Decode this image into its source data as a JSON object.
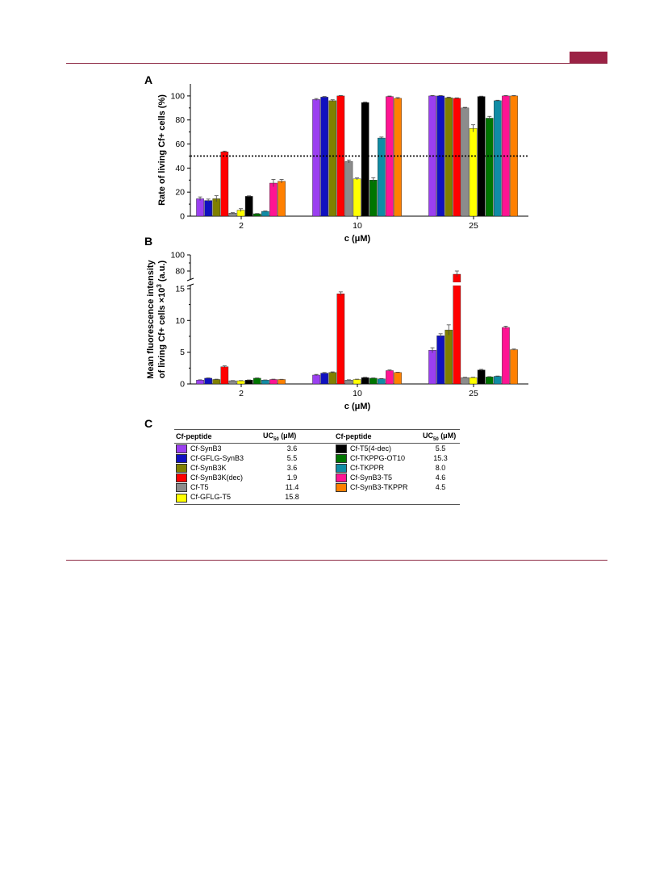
{
  "panels": {
    "a": "A",
    "b": "B",
    "c": "C"
  },
  "chart_data": [
    {
      "panel": "A",
      "type": "bar",
      "categories": [
        "2",
        "10",
        "25"
      ],
      "xlabel": "c (μM)",
      "ylabel": "Rate of living Cf+ cells (%)",
      "ylim": [
        0,
        110
      ],
      "yticks": [
        "0",
        "20",
        "40",
        "60",
        "80",
        "100"
      ],
      "reference_line": 50,
      "series": [
        {
          "name": "Cf-SynB3",
          "color": "#9b3ff0",
          "values": [
            14.5,
            97,
            100
          ],
          "errors": [
            1.5,
            0.8,
            0.4
          ]
        },
        {
          "name": "Cf-GFLG-SynB3",
          "color": "#1010c0",
          "values": [
            13,
            99,
            100
          ],
          "errors": [
            1.2,
            0.5,
            0.3
          ]
        },
        {
          "name": "Cf-SynB3K",
          "color": "#808000",
          "values": [
            14.5,
            96,
            98.5
          ],
          "errors": [
            2.5,
            0.8,
            0.5
          ]
        },
        {
          "name": "Cf-SynB3K(dec)",
          "color": "#ff0000",
          "values": [
            53.5,
            100,
            98
          ],
          "errors": [
            0.6,
            0.3,
            0.4
          ]
        },
        {
          "name": "Cf-T5",
          "color": "#8c8c8c",
          "values": [
            2.5,
            45.5,
            90
          ],
          "errors": [
            0.4,
            1.2,
            0.5
          ]
        },
        {
          "name": "Cf-GFLG-T5",
          "color": "#ffff00",
          "values": [
            5,
            31,
            73
          ],
          "errors": [
            1.2,
            0.8,
            3
          ]
        },
        {
          "name": "Cf-T5(4-dec)",
          "color": "#000000",
          "values": [
            16.5,
            94.5,
            99.5
          ],
          "errors": [
            0.4,
            0.4,
            0.3
          ]
        },
        {
          "name": "Cf-TKPPG-OT10",
          "color": "#007500",
          "values": [
            2,
            30,
            81.5
          ],
          "errors": [
            0.2,
            2,
            1.5
          ]
        },
        {
          "name": "Cf-TKPPR",
          "color": "#108ca5",
          "values": [
            4,
            65,
            96
          ],
          "errors": [
            0.3,
            0.8,
            0.4
          ]
        },
        {
          "name": "Cf-SynB3-T5",
          "color": "#ff1493",
          "values": [
            27.5,
            99.5,
            100
          ],
          "errors": [
            3,
            0.4,
            0.3
          ]
        },
        {
          "name": "Cf-SynB3-TKPPR",
          "color": "#ff8000",
          "values": [
            29,
            98,
            100
          ],
          "errors": [
            1.5,
            0.6,
            0.3
          ]
        }
      ]
    },
    {
      "panel": "B",
      "type": "bar",
      "categories": [
        "2",
        "10",
        "25"
      ],
      "xlabel": "c (μM)",
      "ylabel_line1": "Mean fluorescence intensity",
      "ylabel_line2": "of living Cf+ cells ×10",
      "ylabel_superscript": "3",
      "ylabel_suffix": " (a.u.)",
      "broken_axis": {
        "lower": [
          0,
          15.5
        ],
        "upper": [
          70,
          100
        ]
      },
      "yticks_lower": [
        "0",
        "5",
        "10",
        "15"
      ],
      "yticks_upper": [
        "80",
        "100"
      ],
      "series": [
        {
          "name": "Cf-SynB3",
          "values": [
            0.6,
            1.4,
            5.3
          ],
          "errors": [
            0.05,
            0.1,
            0.4
          ]
        },
        {
          "name": "Cf-GFLG-SynB3",
          "values": [
            0.9,
            1.7,
            7.6
          ],
          "errors": [
            0.05,
            0.1,
            0.3
          ]
        },
        {
          "name": "Cf-SynB3K",
          "values": [
            0.7,
            1.8,
            8.5
          ],
          "errors": [
            0.05,
            0.1,
            0.8
          ]
        },
        {
          "name": "Cf-SynB3K(dec)",
          "values": [
            2.7,
            14.2,
            76
          ],
          "errors": [
            0.15,
            0.3,
            4
          ]
        },
        {
          "name": "Cf-T5",
          "values": [
            0.5,
            0.6,
            1.0
          ],
          "errors": [
            0.03,
            0.05,
            0.05
          ]
        },
        {
          "name": "Cf-GFLG-T5",
          "values": [
            0.5,
            0.7,
            1.0
          ],
          "errors": [
            0.03,
            0.05,
            0.05
          ]
        },
        {
          "name": "Cf-T5(4-dec)",
          "values": [
            0.6,
            1.0,
            2.2
          ],
          "errors": [
            0.03,
            0.05,
            0.1
          ]
        },
        {
          "name": "Cf-TKPPG-OT10",
          "values": [
            0.9,
            0.9,
            1.1
          ],
          "errors": [
            0.05,
            0.05,
            0.05
          ]
        },
        {
          "name": "Cf-TKPPR",
          "values": [
            0.6,
            0.8,
            1.2
          ],
          "errors": [
            0.03,
            0.05,
            0.05
          ]
        },
        {
          "name": "Cf-SynB3-T5",
          "values": [
            0.7,
            2.1,
            8.9
          ],
          "errors": [
            0.05,
            0.1,
            0.2
          ]
        },
        {
          "name": "Cf-SynB3-TKPPR",
          "values": [
            0.7,
            1.8,
            5.4
          ],
          "errors": [
            0.03,
            0.05,
            0.1
          ]
        }
      ]
    }
  ],
  "table": {
    "headers": [
      "Cf-peptide",
      "UC",
      "50",
      " (μM)",
      "Cf-peptide",
      "UC",
      "50",
      " (μM)"
    ],
    "rows": [
      {
        "l_name": "Cf-SynB3",
        "l_color": "#9b3ff0",
        "l_val": "3.6",
        "r_name": "Cf-T5(4-dec)",
        "r_color": "#000000",
        "r_val": "5.5"
      },
      {
        "l_name": "Cf-GFLG-SynB3",
        "l_color": "#1010c0",
        "l_val": "5.5",
        "r_name": "Cf-TKPPG-OT10",
        "r_color": "#007500",
        "r_val": "15.3"
      },
      {
        "l_name": "Cf-SynB3K",
        "l_color": "#808000",
        "l_val": "3.6",
        "r_name": "Cf-TKPPR",
        "r_color": "#108ca5",
        "r_val": "8.0"
      },
      {
        "l_name": "Cf-SynB3K(dec)",
        "l_color": "#ff0000",
        "l_val": "1.9",
        "r_name": "Cf-SynB3-T5",
        "r_color": "#ff1493",
        "r_val": "4.6"
      },
      {
        "l_name": "Cf-T5",
        "l_color": "#8c8c8c",
        "l_val": "11.4",
        "r_name": "Cf-SynB3-TKPPR",
        "r_color": "#ff8000",
        "r_val": "4.5"
      },
      {
        "l_name": "Cf-GFLG-T5",
        "l_color": "#ffff00",
        "l_val": "15.8",
        "r_name": "",
        "r_color": "",
        "r_val": ""
      }
    ]
  }
}
